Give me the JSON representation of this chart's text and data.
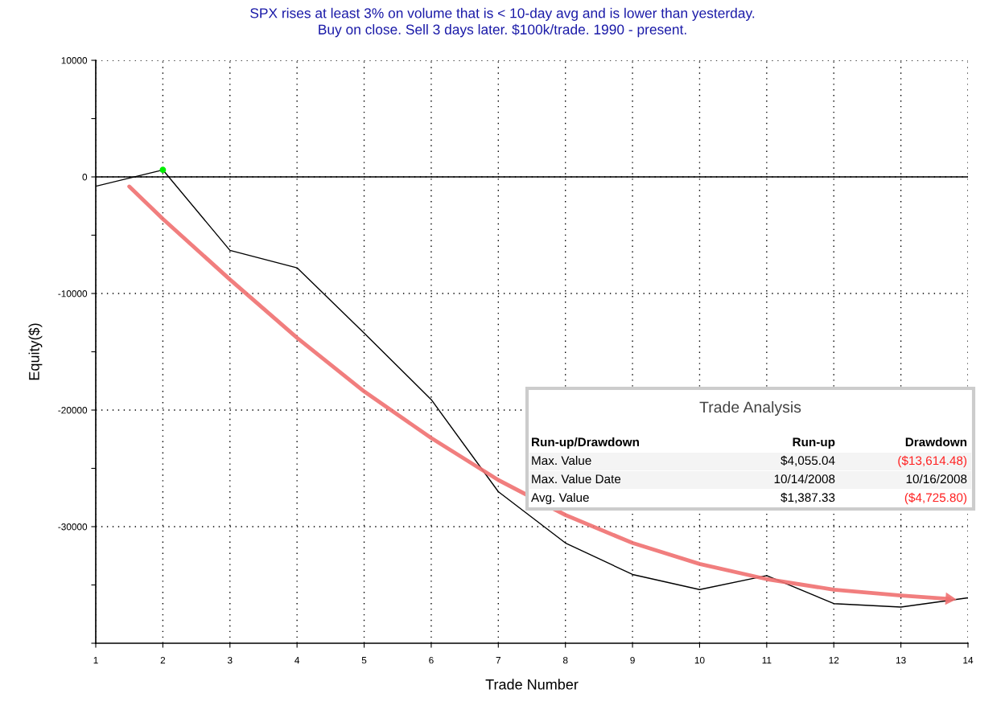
{
  "chart_data": {
    "type": "line",
    "title": "SPX rises at least 3% on volume that is < 10-day avg and is lower than yesterday.\nBuy on close. Sell 3 days later. $100k/trade. 1990 - present.",
    "xlabel": "Trade Number",
    "ylabel": "Equity($)",
    "x": [
      1,
      2,
      3,
      4,
      5,
      6,
      7,
      8,
      9,
      10,
      11,
      12,
      13,
      14
    ],
    "series": [
      {
        "color": "#000000",
        "values": [
          -800,
          600,
          -6300,
          -7800,
          -13400,
          -19100,
          -27000,
          -31400,
          -34100,
          -35400,
          -34200,
          -36600,
          -36900,
          -36100
        ]
      },
      {
        "type": "scatter",
        "color": "#00ee00",
        "x": [
          2
        ],
        "values": [
          600
        ]
      },
      {
        "color": "#f07070",
        "x": [
          1.5,
          2,
          3,
          4,
          5,
          6,
          7,
          8,
          9,
          10,
          11,
          12,
          13,
          13.72
        ],
        "values": [
          -830,
          -3600,
          -8800,
          -13800,
          -18400,
          -22400,
          -26000,
          -29000,
          -31400,
          -33200,
          -34500,
          -35400,
          -35900,
          -36200
        ]
      }
    ],
    "xlim": [
      1,
      14
    ],
    "xticks": [
      1,
      2,
      3,
      4,
      5,
      6,
      7,
      8,
      9,
      10,
      11,
      12,
      13,
      14
    ],
    "ylim": [
      -40000,
      10000
    ],
    "yticks": [
      10000,
      {
        "value": 5000,
        "label": null
      },
      0,
      {
        "value": -5000,
        "label": null
      },
      -10000,
      {
        "value": -15000,
        "label": null
      },
      -20000,
      {
        "value": -25000,
        "label": null
      },
      -30000,
      {
        "value": -35000,
        "label": null
      },
      {
        "value": -40000,
        "label": null
      }
    ],
    "grid": true,
    "ref_lines": [
      {
        "axis": "y",
        "value": 0,
        "color": "#000000",
        "line_style": "solid"
      }
    ],
    "annotations": [
      "Trade Analysis",
      "Run-up/Drawdown",
      "Run-up",
      "Drawdown",
      "Max. Value",
      "$4,055.04",
      "($13,614.48)",
      "Max. Value Date",
      "10/14/2008",
      "10/16/2008",
      "Avg. Value",
      "$1,387.33",
      "($4,725.80)"
    ]
  }
}
